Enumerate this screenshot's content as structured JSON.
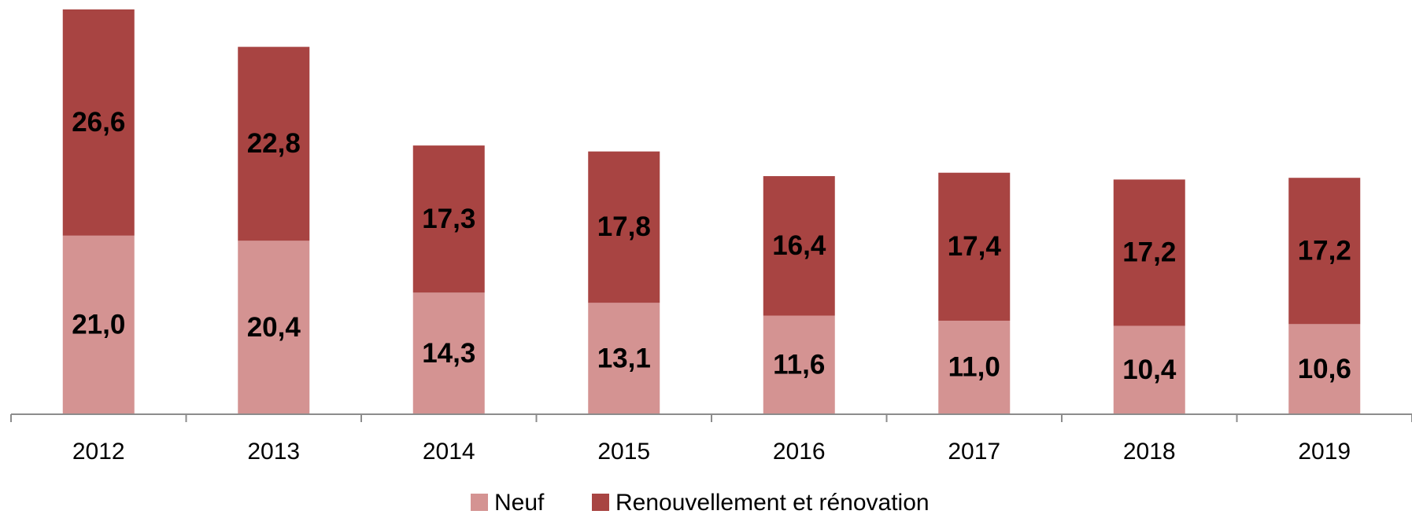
{
  "chart_data": {
    "type": "stacked_bar",
    "categories": [
      "2012",
      "2013",
      "2014",
      "2015",
      "2016",
      "2017",
      "2018",
      "2019"
    ],
    "series": [
      {
        "name": "Neuf",
        "color": "#d49392",
        "values": [
          21.0,
          20.4,
          14.3,
          13.1,
          11.6,
          11.0,
          10.4,
          10.6
        ],
        "value_labels": [
          "21,0",
          "20,4",
          "14,3",
          "13,1",
          "11,6",
          "11,0",
          "10,4",
          "10,6"
        ]
      },
      {
        "name": "Renouvellement et rénovation",
        "color": "#a84442",
        "values": [
          26.6,
          22.8,
          17.3,
          17.8,
          16.4,
          17.4,
          17.2,
          17.2
        ],
        "value_labels": [
          "26,6",
          "22,8",
          "17,3",
          "17,8",
          "16,4",
          "17,4",
          "17,2",
          "17,2"
        ]
      }
    ],
    "legend": "bottom"
  }
}
